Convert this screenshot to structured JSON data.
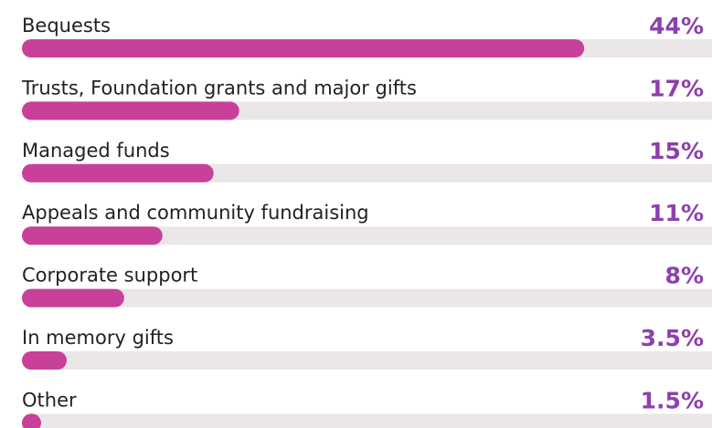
{
  "chart_data": {
    "type": "bar",
    "orientation": "horizontal",
    "categories": [
      "Bequests",
      "Trusts, Foundation grants and major gifts",
      "Managed funds",
      "Appeals and community fundraising",
      "Corporate support",
      "In memory gifts",
      "Other"
    ],
    "values": [
      44,
      17,
      15,
      11,
      8,
      3.5,
      1.5
    ],
    "value_labels": [
      "44%",
      "17%",
      "15%",
      "11%",
      "8%",
      "3.5%",
      "1.5%"
    ],
    "color": "#c8409a",
    "xlim": [
      0,
      54
    ]
  }
}
